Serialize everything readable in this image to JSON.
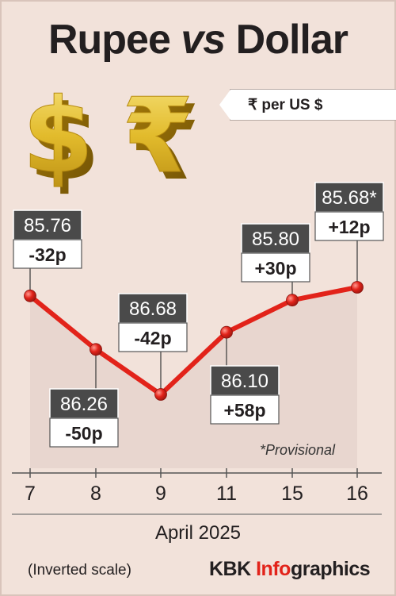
{
  "title": {
    "part1": "Rupee",
    "part2": "vs",
    "part3": "Dollar"
  },
  "unit_label": "₹ per US $",
  "icons": [
    "dollar-sign-3d-gold",
    "rupee-sign-3d-gold"
  ],
  "colors": {
    "line": "#e2231a",
    "marker": "#e2231a",
    "rate_box": "#4a4a4a",
    "change_box": "#ffffff",
    "background": "#f2e2da",
    "area": "#e6d4cc",
    "brand_accent": "#e2231a"
  },
  "footnote": "*Provisional",
  "period": "April 2025",
  "scale_note": "(Inverted scale)",
  "brand": {
    "main": "KBK ",
    "accent": "Info",
    "rest": "graphics"
  },
  "chart_data": {
    "type": "line",
    "categories": [
      "7",
      "8",
      "9",
      "11",
      "15",
      "16"
    ],
    "values": [
      85.76,
      86.26,
      86.68,
      86.1,
      85.8,
      85.68
    ],
    "rate_labels": [
      "85.76",
      "86.26",
      "86.68",
      "86.10",
      "85.80",
      "85.68*"
    ],
    "change_labels": [
      "-32p",
      "-50p",
      "-42p",
      "+58p",
      "+30p",
      "+12p"
    ],
    "y_inverted": true,
    "grid": false
  }
}
